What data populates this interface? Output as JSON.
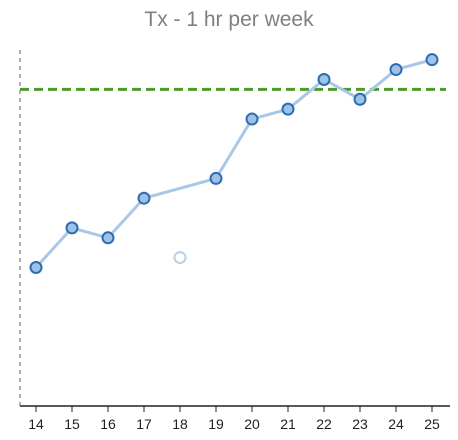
{
  "chart_data": {
    "type": "line",
    "title": "Tx - 1 hr per week",
    "xlabel": "",
    "ylabel": "",
    "categories": [
      "14",
      "15",
      "16",
      "17",
      "18",
      "19",
      "20",
      "21",
      "22",
      "23",
      "24",
      "25"
    ],
    "series": [
      {
        "values": [
          14,
          18,
          17,
          21,
          null,
          23,
          29,
          30,
          33,
          31,
          34,
          35
        ]
      }
    ],
    "outliers": [
      {
        "x": "18",
        "y": 15
      }
    ],
    "reference_line": {
      "y": 32,
      "style": "dashed"
    },
    "ylim": [
      0,
      38
    ],
    "grid": false,
    "colors": {
      "line": "#a9c8e6",
      "marker_fill": "#9cc2e8",
      "marker_stroke": "#2f6bb0",
      "outlier": "#b8cfe6",
      "reference": "#4f9a2d",
      "axis": "#222222",
      "title": "#7f7f7f"
    }
  }
}
